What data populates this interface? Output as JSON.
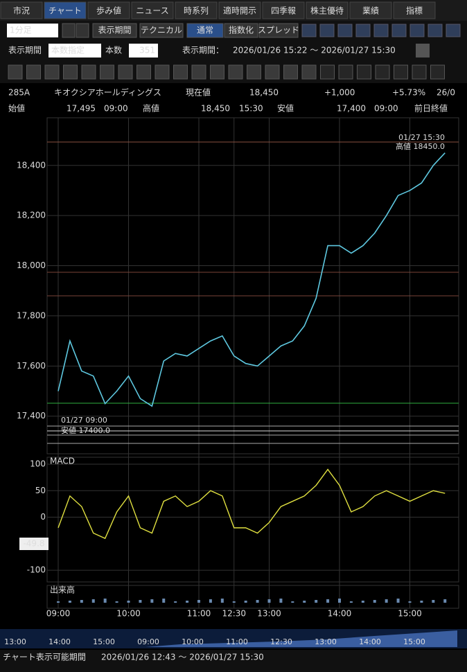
{
  "tabs": [
    "市況",
    "チャート",
    "歩み値",
    "ニュース",
    "時系列",
    "適時開示",
    "四季報",
    "株主優待",
    "業績",
    "指標"
  ],
  "toolbar": {
    "interval": "1分足",
    "period_button": "表示期間",
    "technical": "テクニカル",
    "modes": [
      "通常",
      "指数化",
      "スプレッド"
    ]
  },
  "period_row": {
    "label": "表示期間",
    "mode": "本数指定",
    "count_label": "本数",
    "count": "351",
    "range_label": "表示期間：",
    "range": "2026/01/26 15:22 ～ 2026/01/27 15:30"
  },
  "quote": {
    "code": "285A",
    "name": "キオクシアホールディングス",
    "price_label": "現在値",
    "price": "18,450",
    "change": "+1,000",
    "change_pct": "+5.73%",
    "extra": "26/0"
  },
  "ohlc": {
    "open_label": "始値",
    "open": "17,495",
    "open_time": "09:00",
    "high_label": "高値",
    "high": "18,450",
    "high_time": "15:30",
    "low_label": "安値",
    "low": "17,400",
    "low_time": "09:00",
    "prev_close_label": "前日終値"
  },
  "chart_data": [
    {
      "type": "line",
      "x": [
        "09:00",
        "09:10",
        "09:20",
        "09:30",
        "09:40",
        "09:50",
        "10:00",
        "10:10",
        "10:20",
        "10:30",
        "10:40",
        "10:50",
        "11:00",
        "11:10",
        "11:20",
        "12:30",
        "12:40",
        "12:50",
        "13:00",
        "13:10",
        "13:20",
        "13:30",
        "13:40",
        "13:50",
        "14:00",
        "14:10",
        "14:20",
        "14:30",
        "14:40",
        "14:50",
        "15:00",
        "15:10",
        "15:20",
        "15:30"
      ],
      "series": [
        {
          "color": "#5ec8e0",
          "values": [
            17500,
            17700,
            17580,
            17560,
            17450,
            17500,
            17560,
            17470,
            17440,
            17620,
            17650,
            17640,
            17670,
            17700,
            17720,
            17640,
            17610,
            17600,
            17640,
            17680,
            17700,
            17760,
            17870,
            18080,
            18080,
            18050,
            18080,
            18130,
            18200,
            18280,
            18300,
            18330,
            18400,
            18450
          ]
        }
      ],
      "ylim": [
        17250,
        18590
      ],
      "yticks": [
        {
          "value": 18400,
          "label": "18,400"
        },
        {
          "value": 18200,
          "label": "18,200"
        },
        {
          "value": 18000,
          "label": "18,000"
        },
        {
          "value": 17800,
          "label": "17,800"
        },
        {
          "value": 17600,
          "label": "17,600"
        },
        {
          "value": 17400,
          "label": "17,400"
        }
      ],
      "xticks": [
        "09:00",
        "10:00",
        "11:00",
        "12:30",
        "13:00",
        "14:00",
        "15:00"
      ],
      "annotations": [
        "01/27 15:30",
        "高値 18450.0",
        "01/27 09:00",
        "安値 17400.0"
      ]
    },
    {
      "type": "line",
      "title": "MACD",
      "series": [
        {
          "color": "#e0e040",
          "values": [
            -20,
            40,
            20,
            -30,
            -40,
            10,
            40,
            -20,
            -30,
            30,
            40,
            20,
            30,
            50,
            40,
            -20,
            -20,
            -30,
            -10,
            20,
            30,
            40,
            60,
            90,
            60,
            10,
            20,
            40,
            50,
            40,
            30,
            40,
            50,
            45
          ]
        }
      ],
      "ylim": [
        -122,
        113
      ],
      "yticks": [
        100,
        50,
        0,
        -100
      ],
      "cursor_label": "-49.8"
    }
  ],
  "volume_panel": {
    "title": "出来高"
  },
  "scrollbar": {
    "ticks": [
      "13:00",
      "14:00",
      "15:00",
      "09:00",
      "10:00",
      "11:00",
      "12:30",
      "13:00",
      "14:00",
      "15:00"
    ]
  },
  "footer": {
    "label": "チャート表示可能期間",
    "range": "2026/01/26 12:43 ～ 2026/01/27 15:30"
  }
}
